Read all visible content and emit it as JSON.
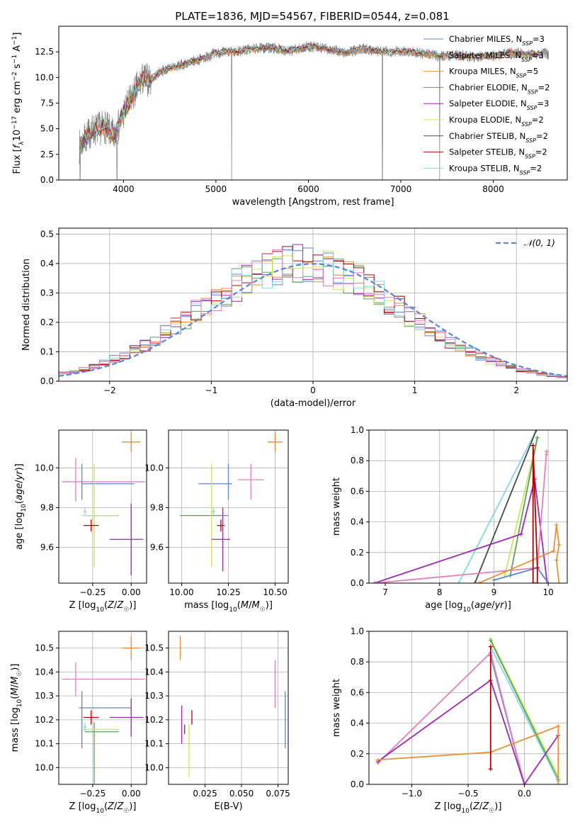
{
  "figure_title": "PLATE=1836, MJD=54567, FIBERID=0544, z=0.081",
  "colors": {
    "chabrier_miles": "#5b84d6",
    "salpeter_miles": "#f08a2a",
    "kroupa_miles": "#e69138",
    "chabrier_elodie": "#5ca05c",
    "salpeter_elodie": "#9c27b0",
    "kroupa_elodie": "#c6e85a",
    "chabrier_stelib": "#4a4a4a",
    "salpeter_stelib": "#b00000",
    "kroupa_stelib": "#80d8e8",
    "pink": "#e07fbf",
    "normal_line": "#5b84d6",
    "grid": "#b0b0b0",
    "spectrum": "#808080"
  },
  "chart_data": [
    {
      "id": "spectrum",
      "type": "line",
      "title": "PLATE=1836, MJD=54567, FIBERID=0544, z=0.081",
      "xlabel": "wavelength [Angstrom, rest frame]",
      "ylabel": "Flux [f_λ 10^-17 erg cm^-2 s^-1 A^-1]",
      "ylabel_parts": [
        "Flux [",
        "f",
        "λ",
        "10",
        "−17",
        " erg cm",
        "−2",
        " s",
        "−1",
        " A",
        "−1",
        "]"
      ],
      "xlim": [
        3300,
        8800
      ],
      "ylim": [
        0,
        15
      ],
      "xticks": [
        4000,
        5000,
        6000,
        7000,
        8000
      ],
      "yticks": [
        0.0,
        2.5,
        5.0,
        7.5,
        10.0,
        12.5
      ],
      "ytick_labels": [
        "0.0",
        "2.5",
        "5.0",
        "7.5",
        "10.0",
        "12.5"
      ],
      "grid": false,
      "legend_position": "right",
      "legend": [
        {
          "label": "Chabrier MILES, N",
          "sub": "SSP",
          "suffix": "=3",
          "color": "#5b84d6"
        },
        {
          "label": "Salpeter MILES, N",
          "sub": "SSP",
          "suffix": "=3",
          "color": "#f08a2a"
        },
        {
          "label": "Kroupa MILES, N",
          "sub": "SSP",
          "suffix": "=5",
          "color": "#e69138"
        },
        {
          "label": "Chabrier ELODIE, N",
          "sub": "SSP",
          "suffix": "=2",
          "color": "#5ca05c"
        },
        {
          "label": "Salpeter ELODIE, N",
          "sub": "SSP",
          "suffix": "=3",
          "color": "#9c27b0"
        },
        {
          "label": "Kroupa ELODIE, N",
          "sub": "SSP",
          "suffix": "=2",
          "color": "#c6e85a"
        },
        {
          "label": "Chabrier STELIB, N",
          "sub": "SSP",
          "suffix": "=2",
          "color": "#4a4a4a"
        },
        {
          "label": "Salpeter STELIB, N",
          "sub": "SSP",
          "suffix": "=2",
          "color": "#b00000"
        },
        {
          "label": "Kroupa STELIB, N",
          "sub": "SSP",
          "suffix": "=2",
          "color": "#80d8e8"
        }
      ],
      "continuum": [
        [
          3520,
          3.2
        ],
        [
          3650,
          4.8
        ],
        [
          3800,
          5.2
        ],
        [
          3900,
          4.2
        ],
        [
          4000,
          6.5
        ],
        [
          4100,
          8.2
        ],
        [
          4200,
          9.8
        ],
        [
          4300,
          9.8
        ],
        [
          4400,
          10.6
        ],
        [
          4500,
          10.9
        ],
        [
          4700,
          11.4
        ],
        [
          4900,
          12.0
        ],
        [
          5000,
          12.4
        ],
        [
          5200,
          12.5
        ],
        [
          5400,
          12.8
        ],
        [
          5600,
          12.9
        ],
        [
          5800,
          12.6
        ],
        [
          6000,
          13.0
        ],
        [
          6200,
          12.8
        ],
        [
          6400,
          12.4
        ],
        [
          6600,
          12.8
        ],
        [
          6800,
          12.5
        ],
        [
          7000,
          12.6
        ],
        [
          7200,
          12.4
        ],
        [
          7400,
          12.1
        ],
        [
          7600,
          12.2
        ],
        [
          7800,
          12.0
        ],
        [
          8000,
          12.1
        ],
        [
          8200,
          12.4
        ],
        [
          8400,
          12.3
        ]
      ],
      "spectrum_end": 8600,
      "model_end": 8500,
      "dips": [
        [
          3530,
          0.0
        ],
        [
          3930,
          0.0
        ],
        [
          5170,
          0.0
        ],
        [
          6800,
          0.0
        ],
        [
          7420,
          0.0
        ]
      ]
    },
    {
      "id": "residuals",
      "type": "histogram",
      "xlabel": "(data-model)/error",
      "ylabel": "Normed distribution",
      "xlim": [
        -2.5,
        2.5
      ],
      "ylim": [
        0,
        0.52
      ],
      "xticks": [
        -2,
        -1,
        0,
        1,
        2
      ],
      "xtick_labels": [
        "−2",
        "−1",
        "0",
        "1",
        "2"
      ],
      "yticks": [
        0.0,
        0.1,
        0.2,
        0.3,
        0.4,
        0.5
      ],
      "ytick_labels": [
        "0.0",
        "0.1",
        "0.2",
        "0.3",
        "0.4",
        "0.5"
      ],
      "grid": true,
      "bin_width": 0.1,
      "legend_position": "top-right",
      "legend_label": "𝒩(0, 1)",
      "reference_curve": {
        "type": "normal",
        "mean": 0,
        "sigma": 1
      }
    },
    {
      "id": "age_vs_Z",
      "type": "errorbar",
      "xlabel": "Z [log10(Z/Z☉)]",
      "ylabel": "age [log10(age/yr)]",
      "xlim": [
        -0.47,
        0.1
      ],
      "ylim": [
        9.42,
        10.19
      ],
      "xticks": [
        -0.25,
        0.0
      ],
      "xtick_labels": [
        "−0.25",
        "0.00"
      ],
      "yticks": [
        9.6,
        9.8,
        10.0
      ],
      "ytick_labels": [
        "9.6",
        "9.8",
        "10.0"
      ],
      "grid": true,
      "points": [
        {
          "x": 0.0,
          "y": 10.13,
          "xerr": 0.06,
          "yerr": 0.05,
          "color": "#f08a2a"
        },
        {
          "x": -0.36,
          "y": 9.94,
          "xerr": 0.0,
          "yerr": 0.11,
          "color": "#e07fbf"
        },
        {
          "x": -0.18,
          "y": 9.93,
          "xerr": 0.27,
          "yerr": 0.0,
          "color": "#e07fbf"
        },
        {
          "x": -0.32,
          "y": 9.93,
          "xerr": 0.0,
          "yerr": 0.09,
          "color": "#5b84d6"
        },
        {
          "x": -0.15,
          "y": 9.92,
          "xerr": 0.17,
          "yerr": 0.0,
          "color": "#5b84d6"
        },
        {
          "x": -0.3,
          "y": 9.78,
          "xerr": 0.01,
          "yerr": 0.02,
          "color": "#80d8e8"
        },
        {
          "x": -0.19,
          "y": 9.76,
          "xerr": 0.11,
          "yerr": 0.0,
          "color": "#5ca05c"
        },
        {
          "x": -0.24,
          "y": 9.76,
          "xerr": 0.0,
          "yerr": 0.26,
          "color": "#c6e85a"
        },
        {
          "x": -0.2,
          "y": 9.76,
          "xerr": 0.12,
          "yerr": 0.0,
          "color": "#c6e85a"
        },
        {
          "x": -0.26,
          "y": 9.71,
          "xerr": 0.05,
          "yerr": 0.03,
          "color": "#b00000"
        },
        {
          "x": -0.03,
          "y": 9.64,
          "xerr": 0.11,
          "yerr": 0.0,
          "color": "#9c27b0"
        },
        {
          "x": 0.0,
          "y": 9.64,
          "xerr": 0.0,
          "yerr": 0.18,
          "color": "#9c27b0"
        }
      ]
    },
    {
      "id": "age_vs_mass",
      "type": "errorbar",
      "xlabel": "mass [log10(M/M☉)]",
      "ylabel": "",
      "xlim": [
        9.93,
        10.57
      ],
      "ylim": [
        9.42,
        10.19
      ],
      "xticks": [
        10.0,
        10.25,
        10.5
      ],
      "xtick_labels": [
        "10.00",
        "10.25",
        "10.50"
      ],
      "yticks": [
        9.6,
        9.8,
        10.0
      ],
      "ytick_labels": [
        "9.6",
        "9.8",
        "10.0"
      ],
      "grid": true,
      "points": [
        {
          "x": 10.5,
          "y": 10.13,
          "xerr": 0.04,
          "yerr": 0.05,
          "color": "#f08a2a"
        },
        {
          "x": 10.37,
          "y": 9.94,
          "xerr": 0.07,
          "yerr": 0.0,
          "color": "#e07fbf"
        },
        {
          "x": 10.37,
          "y": 9.93,
          "xerr": 0.0,
          "yerr": 0.09,
          "color": "#e07fbf"
        },
        {
          "x": 10.18,
          "y": 9.92,
          "xerr": 0.09,
          "yerr": 0.0,
          "color": "#5b84d6"
        },
        {
          "x": 10.25,
          "y": 9.93,
          "xerr": 0.0,
          "yerr": 0.09,
          "color": "#5b84d6"
        },
        {
          "x": 10.17,
          "y": 9.78,
          "xerr": 0.01,
          "yerr": 0.02,
          "color": "#80d8e8"
        },
        {
          "x": 10.12,
          "y": 9.76,
          "xerr": 0.13,
          "yerr": 0.0,
          "color": "#5ca05c"
        },
        {
          "x": 10.16,
          "y": 9.76,
          "xerr": 0.0,
          "yerr": 0.26,
          "color": "#c6e85a"
        },
        {
          "x": 10.21,
          "y": 9.71,
          "xerr": 0.02,
          "yerr": 0.03,
          "color": "#b00000"
        },
        {
          "x": 10.21,
          "y": 9.64,
          "xerr": 0.05,
          "yerr": 0.0,
          "color": "#9c27b0"
        },
        {
          "x": 10.22,
          "y": 9.64,
          "xerr": 0.0,
          "yerr": 0.16,
          "color": "#9c27b0"
        }
      ]
    },
    {
      "id": "weight_vs_age",
      "type": "line",
      "xlabel": "age [log10(age/yr)]",
      "ylabel": "mass weight",
      "xlim": [
        6.7,
        10.35
      ],
      "ylim": [
        0,
        1
      ],
      "xticks": [
        7,
        8,
        9,
        10
      ],
      "yticks": [
        0.0,
        0.2,
        0.4,
        0.6,
        0.8,
        1.0
      ],
      "ytick_labels": [
        "0.0",
        "0.2",
        "0.4",
        "0.6",
        "0.8",
        "1.0"
      ],
      "grid": true,
      "series": [
        {
          "color": "#80d8e8",
          "points": [
            [
              8.35,
              0.0
            ],
            [
              9.78,
              1.0
            ]
          ]
        },
        {
          "color": "#4a4a4a",
          "points": [
            [
              8.65,
              0.0
            ],
            [
              9.78,
              1.0
            ]
          ]
        },
        {
          "color": "#c6e85a",
          "points": [
            [
              9.2,
              0.05
            ],
            [
              9.8,
              0.95
            ]
          ]
        },
        {
          "color": "#5ca05c",
          "points": [
            [
              9.3,
              0.05
            ],
            [
              9.8,
              0.95
            ]
          ]
        },
        {
          "color": "#9c27b0",
          "points": [
            [
              6.8,
              0.0
            ],
            [
              9.5,
              0.32
            ],
            [
              9.75,
              0.68
            ],
            [
              9.98,
              0.0
            ]
          ]
        },
        {
          "color": "#e07fbf",
          "points": [
            [
              6.8,
              0.0
            ],
            [
              9.8,
              0.1
            ],
            [
              9.97,
              0.86
            ],
            [
              9.97,
              0.84
            ]
          ]
        },
        {
          "color": "#5b84d6",
          "points": [
            [
              9.0,
              0.02
            ],
            [
              9.8,
              0.1
            ],
            [
              10.0,
              0.0
            ]
          ]
        },
        {
          "color": "#e69138",
          "points": [
            [
              8.72,
              0.0
            ],
            [
              10.1,
              0.21
            ],
            [
              10.15,
              0.38
            ],
            [
              10.2,
              0.25
            ],
            [
              10.15,
              0.15
            ],
            [
              10.2,
              0.0
            ]
          ]
        },
        {
          "color": "#b00000",
          "points": [
            [
              9.72,
              0.9
            ],
            [
              9.72,
              0.0
            ],
            [
              9.8,
              0.0
            ],
            [
              9.8,
              0.1
            ],
            [
              9.72,
              0.9
            ]
          ]
        }
      ]
    },
    {
      "id": "mass_vs_Z",
      "type": "errorbar",
      "xlabel": "Z [log10(Z/Z☉)]",
      "ylabel": "mass [log10(M/M☉)]",
      "xlim": [
        -0.47,
        0.1
      ],
      "ylim": [
        9.93,
        10.57
      ],
      "xticks": [
        -0.25,
        0.0
      ],
      "xtick_labels": [
        "−0.25",
        "0.00"
      ],
      "yticks": [
        10.0,
        10.1,
        10.2,
        10.3,
        10.4,
        10.5
      ],
      "ytick_labels": [
        "10.0",
        "10.1",
        "10.2",
        "10.3",
        "10.4",
        "10.5"
      ],
      "grid": true,
      "points": [
        {
          "x": 0.0,
          "y": 10.5,
          "xerr": 0.06,
          "yerr": 0.05,
          "color": "#f08a2a"
        },
        {
          "x": -0.36,
          "y": 10.37,
          "xerr": 0.0,
          "yerr": 0.07,
          "color": "#e07fbf"
        },
        {
          "x": -0.18,
          "y": 10.37,
          "xerr": 0.27,
          "yerr": 0.0,
          "color": "#e07fbf"
        },
        {
          "x": -0.32,
          "y": 10.2,
          "xerr": 0.0,
          "yerr": 0.12,
          "color": "#5b84d6"
        },
        {
          "x": -0.17,
          "y": 10.25,
          "xerr": 0.17,
          "yerr": 0.0,
          "color": "#5b84d6"
        },
        {
          "x": -0.3,
          "y": 10.17,
          "xerr": 0.01,
          "yerr": 0.02,
          "color": "#80d8e8"
        },
        {
          "x": -0.19,
          "y": 10.15,
          "xerr": 0.11,
          "yerr": 0.0,
          "color": "#5ca05c"
        },
        {
          "x": -0.24,
          "y": 10.06,
          "xerr": 0.0,
          "yerr": 0.13,
          "color": "#5ca05c"
        },
        {
          "x": -0.2,
          "y": 10.16,
          "xerr": 0.12,
          "yerr": 0.0,
          "color": "#c6e85a"
        },
        {
          "x": -0.26,
          "y": 10.21,
          "xerr": 0.05,
          "yerr": 0.03,
          "color": "#b00000"
        },
        {
          "x": -0.03,
          "y": 10.21,
          "xerr": 0.11,
          "yerr": 0.0,
          "color": "#9c27b0"
        },
        {
          "x": 0.0,
          "y": 10.21,
          "xerr": 0.0,
          "yerr": 0.08,
          "color": "#9c27b0"
        }
      ]
    },
    {
      "id": "mass_vs_ebv",
      "type": "errorbar",
      "xlabel": "E(B-V)",
      "ylabel": "",
      "xlim": [
        0.0,
        0.082
      ],
      "ylim": [
        9.93,
        10.57
      ],
      "xticks": [
        0.025,
        0.05,
        0.075
      ],
      "xtick_labels": [
        "0.025",
        "0.050",
        "0.075"
      ],
      "yticks": [
        10.0,
        10.1,
        10.2,
        10.3,
        10.4,
        10.5
      ],
      "ytick_labels": [
        "10.0",
        "10.1",
        "10.2",
        "10.3",
        "10.4",
        "10.5"
      ],
      "grid": true,
      "points": [
        {
          "x": 0.008,
          "y": 10.5,
          "xerr": 0.0,
          "yerr": 0.05,
          "color": "#e69138"
        },
        {
          "x": 0.073,
          "y": 10.35,
          "xerr": 0.0,
          "yerr": 0.1,
          "color": "#e07fbf"
        },
        {
          "x": 0.08,
          "y": 10.2,
          "xerr": 0.0,
          "yerr": 0.12,
          "color": "#5b84d6"
        },
        {
          "x": 0.009,
          "y": 10.18,
          "xerr": 0.0,
          "yerr": 0.08,
          "color": "#9c27b0"
        },
        {
          "x": 0.011,
          "y": 10.16,
          "xerr": 0.0,
          "yerr": 0.02,
          "color": "#4a4a4a"
        },
        {
          "x": 0.014,
          "y": 10.07,
          "xerr": 0.0,
          "yerr": 0.11,
          "color": "#c6e85a"
        },
        {
          "x": 0.016,
          "y": 10.21,
          "xerr": 0.0,
          "yerr": 0.03,
          "color": "#b00000"
        }
      ]
    },
    {
      "id": "weight_vs_Z",
      "type": "line",
      "xlabel": "Z [log10(Z/Z☉)]",
      "ylabel": "mass weight",
      "xlim": [
        -1.38,
        0.38
      ],
      "ylim": [
        0,
        1
      ],
      "xticks": [
        -1.0,
        -0.5,
        0.0
      ],
      "xtick_labels": [
        "−1.0",
        "−0.5",
        "0.0"
      ],
      "yticks": [
        0.0,
        0.2,
        0.4,
        0.6,
        0.8,
        1.0
      ],
      "ytick_labels": [
        "0.0",
        "0.2",
        "0.4",
        "0.6",
        "0.8",
        "1.0"
      ],
      "grid": true,
      "series": [
        {
          "color": "#c6e85a",
          "points": [
            [
              -0.3,
              0.95
            ],
            [
              0.3,
              0.05
            ]
          ]
        },
        {
          "color": "#5ca05c",
          "points": [
            [
              -0.3,
              0.94
            ],
            [
              0.3,
              0.03
            ]
          ]
        },
        {
          "color": "#80d8e8",
          "points": [
            [
              -0.3,
              0.9
            ],
            [
              0.3,
              0.02
            ]
          ]
        },
        {
          "color": "#5b84d6",
          "points": [
            [
              -0.3,
              0.84
            ],
            [
              0.0,
              0.0
            ]
          ]
        },
        {
          "color": "#e07fbf",
          "points": [
            [
              -1.3,
              0.14
            ],
            [
              -0.3,
              0.86
            ],
            [
              0.0,
              0.0
            ]
          ]
        },
        {
          "color": "#9c27b0",
          "points": [
            [
              -1.3,
              0.15
            ],
            [
              -0.3,
              0.68
            ],
            [
              0.0,
              0.0
            ],
            [
              0.3,
              0.32
            ]
          ]
        },
        {
          "color": "#e69138",
          "points": [
            [
              -1.3,
              0.16
            ],
            [
              -0.3,
              0.21
            ],
            [
              0.3,
              0.38
            ],
            [
              0.3,
              0.0
            ]
          ]
        },
        {
          "color": "#b00000",
          "points": [
            [
              -0.3,
              0.9
            ],
            [
              -0.3,
              0.1
            ]
          ]
        }
      ]
    }
  ]
}
